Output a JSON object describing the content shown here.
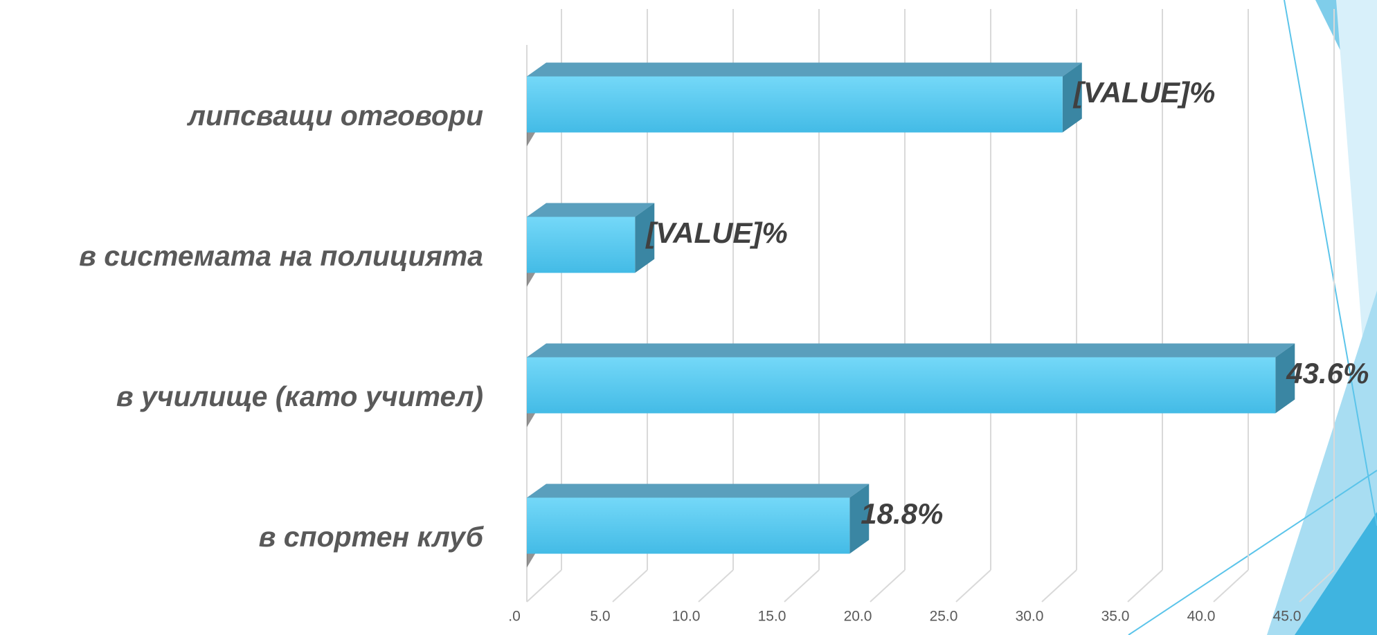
{
  "chart_data": {
    "type": "bar3d-horizontal",
    "categories": [
      "липсващи отговори",
      "в системата на полицията",
      "в училище (като учител)",
      "в спортен клуб"
    ],
    "values": [
      31.2,
      6.3,
      43.6,
      18.8
    ],
    "value_labels": [
      "[VALUE]%",
      "[VALUE]%",
      "43.6%",
      "18.8%"
    ],
    "color": "#4cc5ee",
    "xlim": [
      0,
      45
    ],
    "xticks": [
      {
        "value": 0,
        "label": ".0"
      },
      {
        "value": 5,
        "label": "5.0"
      },
      {
        "value": 10,
        "label": "10.0"
      },
      {
        "value": 15,
        "label": "15.0"
      },
      {
        "value": 20,
        "label": "20.0"
      },
      {
        "value": 25,
        "label": "25.0"
      },
      {
        "value": 30,
        "label": "30.0"
      },
      {
        "value": 35,
        "label": "35.0"
      },
      {
        "value": 40,
        "label": "40.0"
      },
      {
        "value": 45,
        "label": "45.0"
      }
    ],
    "grid": true
  }
}
